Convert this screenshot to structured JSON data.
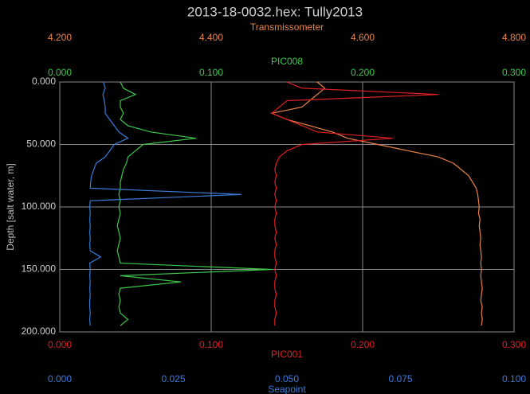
{
  "chart_data": {
    "type": "line",
    "title": "2013-18-0032.hex: Tully2013",
    "ylabel": "Depth [salt water, m]",
    "ylim": [
      0,
      200
    ],
    "y_inverted": true,
    "yticks": [
      {
        "value": 0,
        "label": "0.000"
      },
      {
        "value": 50,
        "label": "50.000"
      },
      {
        "value": 100,
        "label": "100.000"
      },
      {
        "value": 150,
        "label": "150.000"
      },
      {
        "value": 200,
        "label": "200.000"
      }
    ],
    "grid": true,
    "x_axes": [
      {
        "label": "Transmissometer",
        "color": "#e8844a",
        "xlim": [
          4.2,
          4.8
        ],
        "xticks": [
          {
            "value": 4.2,
            "label": "4.200"
          },
          {
            "value": 4.4,
            "label": "4.400"
          },
          {
            "value": 4.6,
            "label": "4.600"
          },
          {
            "value": 4.8,
            "label": "4.800"
          }
        ]
      },
      {
        "label": "PIC008",
        "color": "#3ec84a",
        "xlim": [
          0,
          0.3
        ],
        "xticks": [
          {
            "value": 0,
            "label": "0.000"
          },
          {
            "value": 0.1,
            "label": "0.100"
          },
          {
            "value": 0.2,
            "label": "0.200"
          },
          {
            "value": 0.3,
            "label": "0.300"
          }
        ]
      },
      {
        "label": "PIC001",
        "color": "#e02020",
        "xlim": [
          0,
          0.3
        ],
        "xticks": [
          {
            "value": 0,
            "label": "0.000"
          },
          {
            "value": 0.1,
            "label": "0.100"
          },
          {
            "value": 0.2,
            "label": "0.200"
          },
          {
            "value": 0.3,
            "label": "0.300"
          }
        ]
      },
      {
        "label": "Seapoint",
        "color": "#3b7bd8",
        "xlim": [
          0,
          0.1
        ],
        "xticks": [
          {
            "value": 0,
            "label": "0.000"
          },
          {
            "value": 0.025,
            "label": "0.025"
          },
          {
            "value": 0.05,
            "label": "0.050"
          },
          {
            "value": 0.075,
            "label": "0.075"
          },
          {
            "value": 0.1,
            "label": "0.100"
          }
        ]
      }
    ],
    "depth": [
      0,
      5,
      10,
      15,
      20,
      25,
      30,
      35,
      40,
      45,
      50,
      55,
      60,
      65,
      70,
      75,
      80,
      85,
      90,
      95,
      100,
      105,
      110,
      115,
      120,
      125,
      130,
      135,
      140,
      145,
      150,
      155,
      160,
      165,
      170,
      175,
      180,
      185,
      190,
      195
    ],
    "series": [
      {
        "color": "#e8844a",
        "axis": 0,
        "values": [
          4.54,
          4.55,
          4.54,
          4.53,
          4.52,
          4.48,
          4.5,
          4.53,
          4.56,
          4.58,
          4.62,
          4.66,
          4.7,
          4.72,
          4.73,
          4.74,
          4.745,
          4.75,
          4.752,
          4.753,
          4.754,
          4.753,
          4.755,
          4.754,
          4.755,
          4.756,
          4.755,
          4.756,
          4.757,
          4.756,
          4.757,
          4.756,
          4.757,
          4.758,
          4.757,
          4.756,
          4.758,
          4.757,
          4.758,
          4.757
        ]
      },
      {
        "color": "#e02020",
        "axis": 2,
        "values": [
          0.15,
          0.16,
          0.25,
          0.15,
          0.145,
          0.14,
          0.15,
          0.16,
          0.17,
          0.22,
          0.16,
          0.15,
          0.145,
          0.143,
          0.142,
          0.143,
          0.142,
          0.143,
          0.142,
          0.143,
          0.142,
          0.143,
          0.142,
          0.142,
          0.143,
          0.142,
          0.143,
          0.142,
          0.142,
          0.143,
          0.142,
          0.143,
          0.142,
          0.142,
          0.143,
          0.142,
          0.142,
          0.143,
          0.142,
          0.142
        ]
      },
      {
        "color": "#3ec84a",
        "axis": 1,
        "values": [
          0.04,
          0.042,
          0.05,
          0.04,
          0.04,
          0.042,
          0.04,
          0.045,
          0.06,
          0.09,
          0.055,
          0.05,
          0.045,
          0.044,
          0.042,
          0.041,
          0.04,
          0.04,
          0.039,
          0.04,
          0.039,
          0.04,
          0.039,
          0.038,
          0.039,
          0.04,
          0.039,
          0.038,
          0.039,
          0.04,
          0.14,
          0.04,
          0.08,
          0.04,
          0.039,
          0.04,
          0.039,
          0.04,
          0.045,
          0.04
        ]
      },
      {
        "color": "#3b7bd8",
        "axis": 3,
        "values": [
          0.0096,
          0.01,
          0.0095,
          0.0098,
          0.01,
          0.01,
          0.011,
          0.012,
          0.013,
          0.015,
          0.012,
          0.011,
          0.01,
          0.008,
          0.0075,
          0.007,
          0.0068,
          0.0067,
          0.04,
          0.0067,
          0.0066,
          0.0067,
          0.0066,
          0.0067,
          0.0066,
          0.0067,
          0.0066,
          0.0067,
          0.009,
          0.0066,
          0.0067,
          0.0066,
          0.0067,
          0.0066,
          0.0067,
          0.0066,
          0.0066,
          0.0067,
          0.0066,
          0.0067
        ]
      }
    ]
  }
}
